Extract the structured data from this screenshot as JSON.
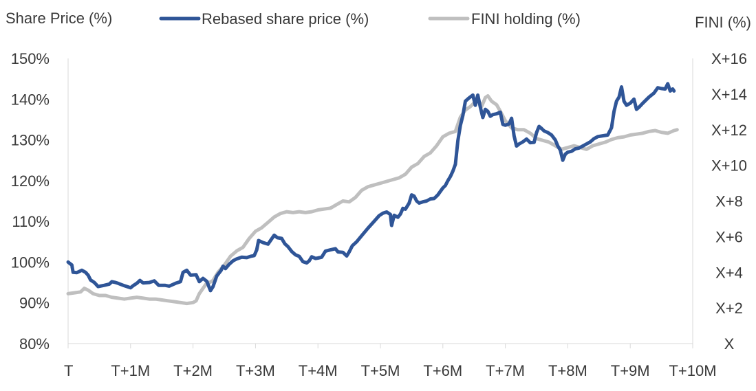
{
  "chart_data": {
    "type": "line",
    "left_axis_title": "Share Price (%)",
    "right_axis_title": "FINI (%)",
    "legend": [
      {
        "label": "Rebased share price (%)",
        "color": "#2f5597"
      },
      {
        "label": "FINI holding (%)",
        "color": "#bfbfbf"
      }
    ],
    "left_ticks": [
      "150%",
      "140%",
      "130%",
      "120%",
      "110%",
      "100%",
      "90%",
      "80%"
    ],
    "right_ticks": [
      "X+16",
      "X+14",
      "X+12",
      "X+10",
      "X+8",
      "X+6",
      "X+4",
      "X+2",
      "X"
    ],
    "x_ticks": [
      "T",
      "T+1M",
      "T+2M",
      "T+3M",
      "T+4M",
      "T+5M",
      "T+6M",
      "T+7M",
      "T+8M",
      "T+9M",
      "T+10M"
    ],
    "xlim": [
      0,
      10
    ],
    "ylim_left": [
      80,
      150
    ],
    "ylim_right": [
      0,
      16
    ],
    "grid": false,
    "legend_position": "top",
    "series": [
      {
        "name": "Rebased share price (%)",
        "axis": "left",
        "color": "#2f5597",
        "points": [
          [
            0.0,
            100.0
          ],
          [
            0.06,
            99.3
          ],
          [
            0.08,
            97.5
          ],
          [
            0.14,
            97.4
          ],
          [
            0.22,
            98.0
          ],
          [
            0.28,
            97.5
          ],
          [
            0.32,
            96.8
          ],
          [
            0.36,
            95.6
          ],
          [
            0.42,
            95.0
          ],
          [
            0.48,
            94.0
          ],
          [
            0.58,
            94.3
          ],
          [
            0.66,
            94.6
          ],
          [
            0.7,
            95.2
          ],
          [
            0.76,
            95.0
          ],
          [
            0.8,
            94.8
          ],
          [
            0.9,
            94.2
          ],
          [
            1.0,
            93.7
          ],
          [
            1.05,
            94.3
          ],
          [
            1.1,
            94.8
          ],
          [
            1.15,
            95.5
          ],
          [
            1.2,
            94.9
          ],
          [
            1.3,
            95.0
          ],
          [
            1.38,
            95.4
          ],
          [
            1.45,
            94.3
          ],
          [
            1.55,
            94.3
          ],
          [
            1.62,
            94.1
          ],
          [
            1.72,
            94.8
          ],
          [
            1.8,
            95.2
          ],
          [
            1.84,
            97.5
          ],
          [
            1.9,
            98.0
          ],
          [
            1.96,
            96.8
          ],
          [
            2.05,
            96.9
          ],
          [
            2.1,
            95.2
          ],
          [
            2.16,
            96.0
          ],
          [
            2.22,
            95.3
          ],
          [
            2.28,
            93.0
          ],
          [
            2.32,
            94.0
          ],
          [
            2.38,
            96.6
          ],
          [
            2.45,
            98.0
          ],
          [
            2.48,
            99.0
          ],
          [
            2.52,
            98.4
          ],
          [
            2.58,
            99.5
          ],
          [
            2.64,
            100.3
          ],
          [
            2.7,
            100.8
          ],
          [
            2.78,
            101.2
          ],
          [
            2.86,
            101.1
          ],
          [
            2.92,
            101.4
          ],
          [
            2.98,
            101.6
          ],
          [
            3.02,
            103.0
          ],
          [
            3.05,
            105.3
          ],
          [
            3.12,
            104.8
          ],
          [
            3.2,
            104.4
          ],
          [
            3.25,
            105.5
          ],
          [
            3.3,
            106.6
          ],
          [
            3.35,
            106.0
          ],
          [
            3.42,
            105.8
          ],
          [
            3.47,
            104.5
          ],
          [
            3.52,
            103.8
          ],
          [
            3.58,
            102.6
          ],
          [
            3.64,
            101.8
          ],
          [
            3.7,
            101.4
          ],
          [
            3.76,
            100.1
          ],
          [
            3.82,
            99.8
          ],
          [
            3.86,
            100.3
          ],
          [
            3.9,
            101.3
          ],
          [
            3.96,
            100.9
          ],
          [
            4.0,
            101.0
          ],
          [
            4.06,
            101.2
          ],
          [
            4.12,
            102.7
          ],
          [
            4.2,
            103.0
          ],
          [
            4.28,
            103.3
          ],
          [
            4.32,
            102.5
          ],
          [
            4.4,
            102.4
          ],
          [
            4.46,
            101.5
          ],
          [
            4.5,
            102.5
          ],
          [
            4.55,
            104.0
          ],
          [
            4.62,
            105.0
          ],
          [
            4.7,
            106.5
          ],
          [
            4.8,
            108.3
          ],
          [
            4.9,
            110.0
          ],
          [
            4.98,
            111.4
          ],
          [
            5.04,
            112.0
          ],
          [
            5.1,
            112.3
          ],
          [
            5.16,
            111.7
          ],
          [
            5.18,
            109.0
          ],
          [
            5.22,
            111.5
          ],
          [
            5.28,
            111.0
          ],
          [
            5.32,
            111.8
          ],
          [
            5.36,
            113.2
          ],
          [
            5.4,
            113.0
          ],
          [
            5.46,
            114.5
          ],
          [
            5.5,
            116.5
          ],
          [
            5.54,
            116.2
          ],
          [
            5.58,
            115.0
          ],
          [
            5.62,
            114.5
          ],
          [
            5.68,
            114.8
          ],
          [
            5.74,
            115.0
          ],
          [
            5.8,
            115.5
          ],
          [
            5.86,
            115.6
          ],
          [
            5.92,
            116.5
          ],
          [
            6.0,
            118.2
          ],
          [
            6.04,
            118.8
          ],
          [
            6.08,
            120.0
          ],
          [
            6.12,
            121.0
          ],
          [
            6.16,
            122.3
          ],
          [
            6.2,
            124.0
          ],
          [
            6.24,
            129.8
          ],
          [
            6.28,
            133.5
          ],
          [
            6.32,
            136.0
          ],
          [
            6.36,
            139.5
          ],
          [
            6.42,
            140.3
          ],
          [
            6.48,
            141.0
          ],
          [
            6.52,
            138.5
          ],
          [
            6.56,
            141.0
          ],
          [
            6.6,
            138.0
          ],
          [
            6.64,
            135.5
          ],
          [
            6.68,
            137.5
          ],
          [
            6.72,
            137.0
          ],
          [
            6.76,
            135.8
          ],
          [
            6.8,
            136.2
          ],
          [
            6.86,
            136.4
          ],
          [
            6.92,
            136.8
          ],
          [
            6.96,
            133.8
          ],
          [
            7.0,
            133.6
          ],
          [
            7.06,
            133.9
          ],
          [
            7.1,
            135.3
          ],
          [
            7.14,
            131.0
          ],
          [
            7.18,
            128.5
          ],
          [
            7.22,
            129.0
          ],
          [
            7.28,
            129.5
          ],
          [
            7.34,
            130.2
          ],
          [
            7.4,
            129.3
          ],
          [
            7.46,
            129.4
          ],
          [
            7.5,
            131.8
          ],
          [
            7.54,
            133.3
          ],
          [
            7.58,
            132.8
          ],
          [
            7.62,
            132.2
          ],
          [
            7.68,
            131.8
          ],
          [
            7.74,
            131.2
          ],
          [
            7.8,
            130.0
          ],
          [
            7.84,
            128.5
          ],
          [
            7.88,
            127.5
          ],
          [
            7.92,
            125.0
          ],
          [
            7.96,
            126.5
          ],
          [
            8.0,
            127.0
          ],
          [
            8.06,
            127.2
          ],
          [
            8.12,
            127.8
          ],
          [
            8.18,
            128.0
          ],
          [
            8.24,
            128.5
          ],
          [
            8.3,
            129.0
          ],
          [
            8.36,
            129.5
          ],
          [
            8.42,
            130.3
          ],
          [
            8.48,
            130.8
          ],
          [
            8.56,
            131.0
          ],
          [
            8.64,
            131.2
          ],
          [
            8.7,
            133.0
          ],
          [
            8.74,
            137.0
          ],
          [
            8.78,
            139.5
          ],
          [
            8.82,
            140.5
          ],
          [
            8.86,
            143.0
          ],
          [
            8.9,
            139.5
          ],
          [
            8.94,
            138.5
          ],
          [
            9.0,
            139.0
          ],
          [
            9.06,
            140.0
          ],
          [
            9.1,
            137.5
          ],
          [
            9.14,
            138.0
          ],
          [
            9.2,
            139.0
          ],
          [
            9.3,
            140.5
          ],
          [
            9.38,
            141.5
          ],
          [
            9.44,
            142.8
          ],
          [
            9.5,
            142.6
          ],
          [
            9.56,
            142.5
          ],
          [
            9.6,
            143.8
          ],
          [
            9.64,
            142.0
          ],
          [
            9.68,
            142.5
          ],
          [
            9.7,
            142.0
          ]
        ]
      },
      {
        "name": "FINI holding (%)",
        "axis": "right",
        "color": "#bfbfbf",
        "points": [
          [
            0.0,
            2.8
          ],
          [
            0.1,
            2.85
          ],
          [
            0.2,
            2.9
          ],
          [
            0.26,
            3.1
          ],
          [
            0.32,
            3.0
          ],
          [
            0.4,
            2.8
          ],
          [
            0.5,
            2.7
          ],
          [
            0.6,
            2.7
          ],
          [
            0.7,
            2.6
          ],
          [
            0.8,
            2.55
          ],
          [
            0.9,
            2.5
          ],
          [
            1.0,
            2.55
          ],
          [
            1.1,
            2.6
          ],
          [
            1.2,
            2.55
          ],
          [
            1.3,
            2.5
          ],
          [
            1.4,
            2.5
          ],
          [
            1.5,
            2.45
          ],
          [
            1.6,
            2.4
          ],
          [
            1.7,
            2.35
          ],
          [
            1.8,
            2.3
          ],
          [
            1.9,
            2.25
          ],
          [
            2.0,
            2.3
          ],
          [
            2.05,
            2.4
          ],
          [
            2.1,
            2.8
          ],
          [
            2.16,
            3.1
          ],
          [
            2.22,
            3.4
          ],
          [
            2.28,
            3.45
          ],
          [
            2.32,
            3.55
          ],
          [
            2.4,
            4.0
          ],
          [
            2.5,
            4.4
          ],
          [
            2.6,
            4.9
          ],
          [
            2.7,
            5.2
          ],
          [
            2.8,
            5.4
          ],
          [
            2.9,
            5.9
          ],
          [
            3.0,
            6.3
          ],
          [
            3.1,
            6.5
          ],
          [
            3.2,
            6.8
          ],
          [
            3.3,
            7.1
          ],
          [
            3.4,
            7.3
          ],
          [
            3.5,
            7.4
          ],
          [
            3.6,
            7.35
          ],
          [
            3.7,
            7.4
          ],
          [
            3.8,
            7.35
          ],
          [
            3.9,
            7.4
          ],
          [
            4.0,
            7.5
          ],
          [
            4.1,
            7.55
          ],
          [
            4.2,
            7.6
          ],
          [
            4.3,
            7.8
          ],
          [
            4.4,
            8.0
          ],
          [
            4.5,
            7.95
          ],
          [
            4.6,
            8.2
          ],
          [
            4.7,
            8.6
          ],
          [
            4.8,
            8.8
          ],
          [
            4.9,
            8.9
          ],
          [
            5.0,
            9.0
          ],
          [
            5.1,
            9.1
          ],
          [
            5.2,
            9.2
          ],
          [
            5.3,
            9.3
          ],
          [
            5.4,
            9.5
          ],
          [
            5.5,
            9.9
          ],
          [
            5.6,
            10.1
          ],
          [
            5.7,
            10.5
          ],
          [
            5.8,
            10.7
          ],
          [
            5.9,
            11.1
          ],
          [
            6.0,
            11.6
          ],
          [
            6.1,
            11.8
          ],
          [
            6.2,
            11.9
          ],
          [
            6.28,
            12.7
          ],
          [
            6.36,
            13.1
          ],
          [
            6.44,
            13.3
          ],
          [
            6.5,
            13.5
          ],
          [
            6.56,
            13.7
          ],
          [
            6.62,
            13.3
          ],
          [
            6.68,
            13.8
          ],
          [
            6.72,
            13.9
          ],
          [
            6.78,
            13.6
          ],
          [
            6.86,
            13.4
          ],
          [
            6.94,
            12.9
          ],
          [
            7.0,
            12.5
          ],
          [
            7.1,
            12.1
          ],
          [
            7.2,
            12.0
          ],
          [
            7.3,
            12.0
          ],
          [
            7.4,
            11.8
          ],
          [
            7.5,
            11.5
          ],
          [
            7.6,
            11.4
          ],
          [
            7.7,
            11.3
          ],
          [
            7.8,
            11.1
          ],
          [
            7.9,
            10.9
          ],
          [
            8.0,
            11.0
          ],
          [
            8.1,
            11.1
          ],
          [
            8.2,
            11.0
          ],
          [
            8.3,
            10.9
          ],
          [
            8.4,
            11.1
          ],
          [
            8.5,
            11.2
          ],
          [
            8.6,
            11.3
          ],
          [
            8.7,
            11.45
          ],
          [
            8.8,
            11.55
          ],
          [
            8.9,
            11.6
          ],
          [
            9.0,
            11.7
          ],
          [
            9.1,
            11.75
          ],
          [
            9.2,
            11.8
          ],
          [
            9.3,
            11.9
          ],
          [
            9.4,
            11.95
          ],
          [
            9.5,
            11.85
          ],
          [
            9.6,
            11.8
          ],
          [
            9.7,
            11.95
          ],
          [
            9.75,
            12.0
          ]
        ]
      }
    ]
  }
}
